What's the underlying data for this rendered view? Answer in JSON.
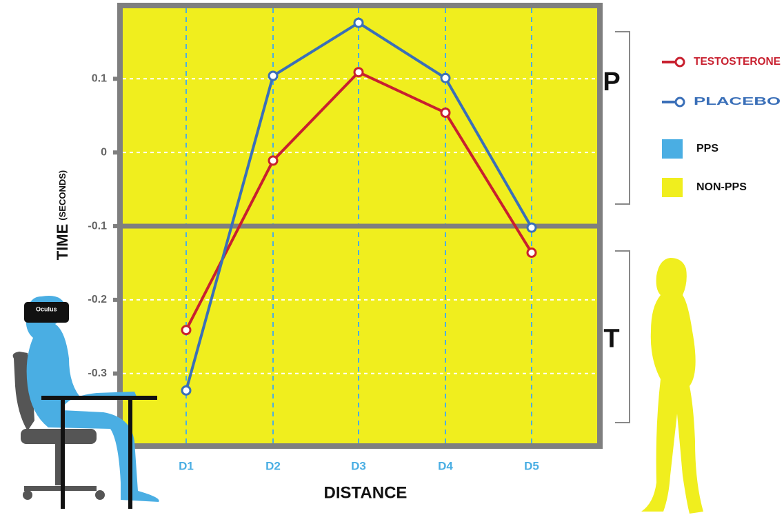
{
  "chart_data": {
    "type": "line",
    "y_label": "TIME",
    "y_label_unit": "(SECONDS)",
    "x_label": "DISTANCE",
    "categories": [
      "D1",
      "D2",
      "D3",
      "D4",
      "D5"
    ],
    "series": [
      {
        "name": "TESTOSTERONE",
        "color": "#c8202f",
        "values": [
          -0.241,
          -0.011,
          0.109,
          0.054,
          -0.136
        ]
      },
      {
        "name": "PLACEBO",
        "color": "#3a6fb8",
        "values": [
          -0.323,
          0.104,
          0.176,
          0.101,
          -0.102
        ]
      }
    ],
    "regions": [
      {
        "name": "PPS",
        "color": "#4aaee3"
      },
      {
        "name": "NON-PPS",
        "color": "#f0ee1e"
      }
    ],
    "ylim": [
      -0.391,
      0.192
    ],
    "yticks": [
      0.1,
      0,
      -0.1,
      -0.2,
      -0.3
    ],
    "boundary": -0.1,
    "brackets": [
      "P",
      "T"
    ],
    "headset_label": "Oculus",
    "grid": true
  }
}
